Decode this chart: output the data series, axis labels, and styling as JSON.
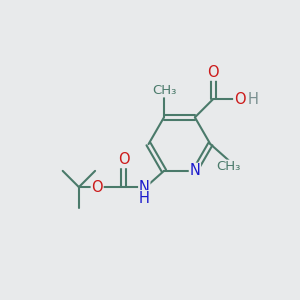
{
  "bg_color": "#e8eaeb",
  "bond_color": "#4a7a6a",
  "bond_width": 1.5,
  "atom_colors": {
    "C": "#4a7a6a",
    "N": "#1a1acc",
    "O": "#cc1a1a",
    "H": "#7a9090"
  },
  "font_size": 10.5,
  "small_font_size": 9.5
}
